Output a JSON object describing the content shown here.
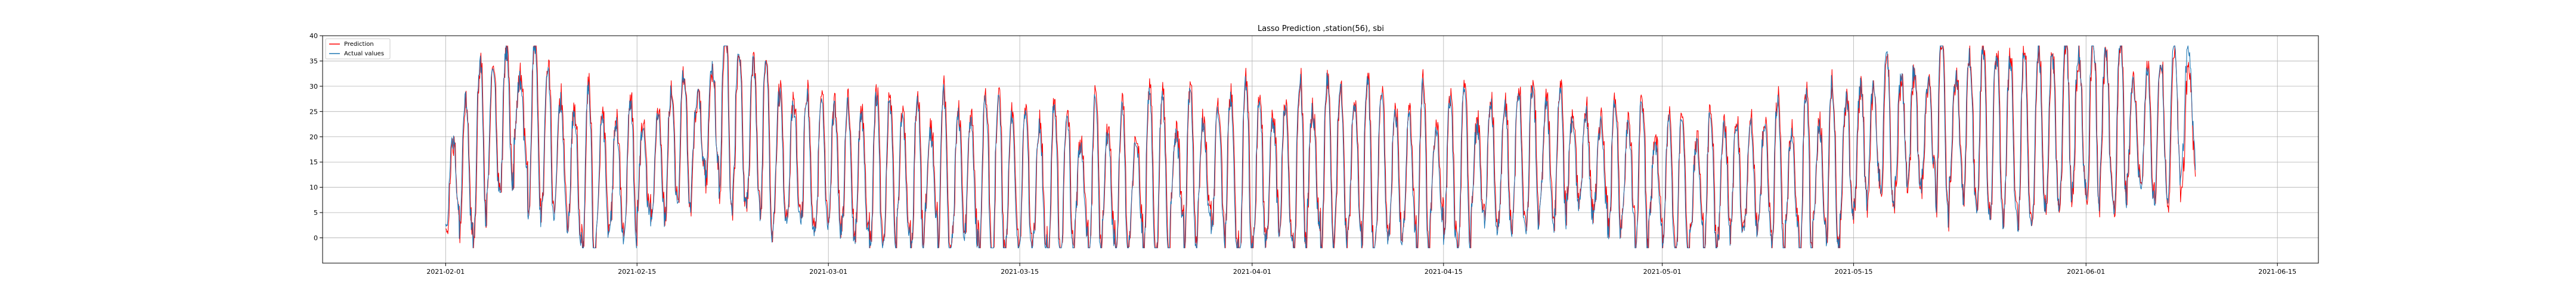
{
  "chart_data": {
    "type": "line",
    "title": "Lasso Prediction ,station(56), sbi",
    "xlabel": "",
    "ylabel": "",
    "x_range": [
      "2021-01-23",
      "2021-06-18"
    ],
    "ylim": [
      -5,
      40
    ],
    "grid": true,
    "legend": "top-left",
    "x_ticks": [
      "2021-02-01",
      "2021-02-15",
      "2021-03-01",
      "2021-03-15",
      "2021-04-01",
      "2021-04-15",
      "2021-05-01",
      "2021-05-15",
      "2021-06-01",
      "2021-06-15"
    ],
    "y_ticks": [
      0,
      5,
      10,
      15,
      20,
      25,
      30,
      35,
      40
    ],
    "date_range": [
      "2021-02-01",
      "2021-06-09"
    ],
    "series": [
      {
        "name": "Prediction",
        "color": "#ff0000",
        "x": [
          "2021-02-01",
          "2021-02-06",
          "2021-02-11",
          "2021-02-16",
          "2021-02-21",
          "2021-02-26",
          "2021-03-03",
          "2021-03-08",
          "2021-03-13",
          "2021-03-18",
          "2021-03-23",
          "2021-03-28",
          "2021-04-02",
          "2021-04-07",
          "2021-04-12",
          "2021-04-17",
          "2021-04-22",
          "2021-04-27",
          "2021-05-02",
          "2021-05-07",
          "2021-05-12",
          "2021-05-17",
          "2021-05-22",
          "2021-05-27",
          "2021-06-01",
          "2021-06-06",
          "2021-06-09"
        ],
        "values": [
          9,
          26,
          12,
          14,
          24,
          16,
          14,
          13,
          12,
          11,
          11,
          14,
          13,
          15,
          13,
          14,
          17,
          15,
          10,
          13,
          12,
          20,
          22,
          20,
          23,
          21,
          24
        ]
      },
      {
        "name": "Actual values",
        "color": "#1f77b4",
        "x": [
          "2021-02-01",
          "2021-02-06",
          "2021-02-11",
          "2021-02-16",
          "2021-02-21",
          "2021-02-26",
          "2021-03-03",
          "2021-03-08",
          "2021-03-13",
          "2021-03-18",
          "2021-03-23",
          "2021-03-28",
          "2021-04-02",
          "2021-04-07",
          "2021-04-12",
          "2021-04-17",
          "2021-04-22",
          "2021-04-27",
          "2021-05-02",
          "2021-05-07",
          "2021-05-12",
          "2021-05-17",
          "2021-05-22",
          "2021-05-27",
          "2021-06-01",
          "2021-06-06",
          "2021-06-09"
        ],
        "values": [
          10,
          25,
          11,
          13,
          25,
          15,
          13,
          12,
          11,
          10,
          10,
          13,
          12,
          15,
          12,
          13,
          16,
          14,
          9,
          12,
          11,
          21,
          22,
          19,
          24,
          20,
          29
        ]
      }
    ]
  }
}
